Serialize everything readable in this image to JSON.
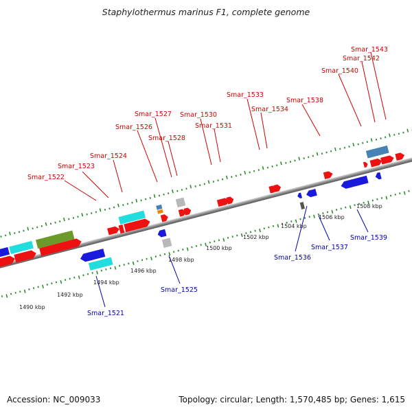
{
  "title": "Staphylothermus marinus F1, complete genome",
  "footer": {
    "accession": "Accession: NC_009033",
    "summary": "Topology: circular; Length: 1,570,485 bp; Genes: 1,615"
  },
  "colors": {
    "backbone": "#8a8a8a",
    "tick": "#2e8b2e",
    "forward_label": "#cc0000",
    "reverse_label": "#0000aa",
    "forward_gene": "#ee1111",
    "reverse_gene": "#1a1add",
    "rna_cyan": "#22dddd",
    "rna_olive": "#6b9a2a",
    "steel": "#4682b4",
    "grey": "#b8b8b8",
    "orange": "#ee8800"
  },
  "scale_labels": [
    "1490 kbp",
    "1492 kbp",
    "1494 kbp",
    "1496 kbp",
    "1498 kbp",
    "1500 kbp",
    "1502 kbp",
    "1504 kbp",
    "1506 kbp",
    "1508 kbp"
  ],
  "forward_labels": [
    "Smar_1522",
    "Smar_1523",
    "Smar_1524",
    "Smar_1526",
    "Smar_1527",
    "Smar_1528",
    "Smar_1530",
    "Smar_1531",
    "Smar_1533",
    "Smar_1534",
    "Smar_1538",
    "Smar_1540",
    "Smar_1542",
    "Smar_1543"
  ],
  "reverse_labels": [
    "Smar_1521",
    "Smar_1525",
    "Smar_1536",
    "Smar_1537",
    "Smar_1539"
  ]
}
